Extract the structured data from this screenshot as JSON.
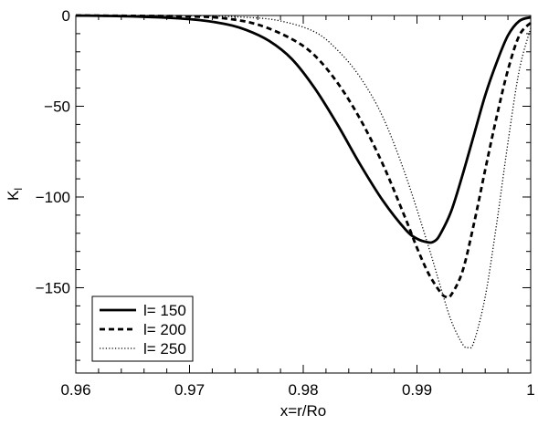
{
  "chart_data": {
    "type": "line",
    "title": "",
    "xlabel": "x=r/Ro",
    "ylabel_main": "K",
    "ylabel_sub": "l",
    "xlim": [
      0.96,
      1.0
    ],
    "ylim": [
      -197,
      0
    ],
    "xticks": [
      0.96,
      0.97,
      0.98,
      0.99,
      1.0
    ],
    "xtick_labels": [
      "0.96",
      "0.97",
      "0.98",
      "0.99",
      "1"
    ],
    "yticks": [
      0,
      -50,
      -100,
      -150
    ],
    "ytick_labels": [
      "0",
      "−50",
      "−100",
      "−150"
    ],
    "x_minor_step": 0.002,
    "y_minor_step": 10,
    "grid": false,
    "legend_position": "bottom-left",
    "series": [
      {
        "name": "l= 150",
        "style": "solid",
        "color": "#000000",
        "x": [
          0.96,
          0.965,
          0.97,
          0.973,
          0.975,
          0.977,
          0.979,
          0.981,
          0.983,
          0.985,
          0.987,
          0.989,
          0.99,
          0.991,
          0.9915,
          0.992,
          0.993,
          0.994,
          0.995,
          0.996,
          0.997,
          0.998,
          0.999,
          1.0
        ],
        "y": [
          0,
          -0.5,
          -2,
          -4.5,
          -8,
          -14,
          -24,
          -40,
          -60,
          -82,
          -102,
          -118,
          -123,
          -125,
          -124.5,
          -121,
          -108,
          -88,
          -66,
          -44,
          -26,
          -11,
          -3,
          -1
        ]
      },
      {
        "name": "l= 200",
        "style": "dashed",
        "color": "#000000",
        "x": [
          0.96,
          0.965,
          0.97,
          0.973,
          0.976,
          0.979,
          0.981,
          0.983,
          0.985,
          0.987,
          0.989,
          0.99,
          0.991,
          0.992,
          0.9925,
          0.993,
          0.994,
          0.995,
          0.996,
          0.997,
          0.998,
          0.999,
          1.0
        ],
        "y": [
          0,
          -0.2,
          -0.5,
          -1.5,
          -5,
          -13,
          -22,
          -37,
          -57,
          -82,
          -112,
          -128,
          -142,
          -152,
          -155,
          -154,
          -141,
          -115,
          -85,
          -56,
          -30,
          -11,
          -4
        ]
      },
      {
        "name": "l= 250",
        "style": "dotted",
        "color": "#000000",
        "x": [
          0.96,
          0.97,
          0.975,
          0.978,
          0.981,
          0.983,
          0.985,
          0.987,
          0.989,
          0.991,
          0.992,
          0.993,
          0.994,
          0.9945,
          0.995,
          0.996,
          0.997,
          0.998,
          0.999,
          1.0
        ],
        "y": [
          0,
          -0.1,
          -1,
          -3,
          -9,
          -19,
          -34,
          -56,
          -88,
          -127,
          -148,
          -168,
          -181,
          -183,
          -180,
          -155,
          -115,
          -70,
          -30,
          -7
        ]
      }
    ]
  }
}
